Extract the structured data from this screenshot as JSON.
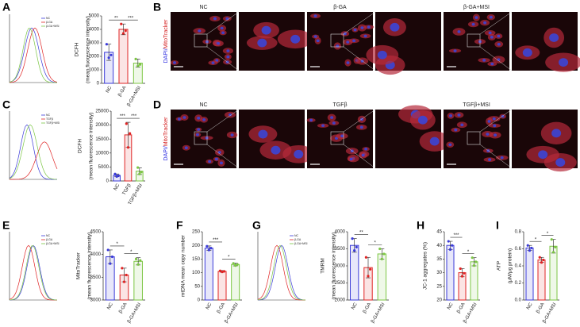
{
  "panel_labels": [
    "A",
    "B",
    "C",
    "D",
    "E",
    "F",
    "G",
    "H",
    "I"
  ],
  "images": [
    {
      "stain": [
        "DAPI/",
        "MitoTracker"
      ],
      "groups": [
        "NC",
        "β-GA",
        "β-GA+MSI"
      ]
    },
    {
      "stain": [
        "DAPI/",
        "MitoTracker"
      ],
      "groups": [
        "NC",
        "TGFβ",
        "TGFβ+MSI"
      ]
    }
  ],
  "flow": [
    {
      "legend": [
        "NC",
        "β-GA",
        "β-GA+MSI"
      ]
    },
    {
      "legend": [
        "NC",
        "TGFβ",
        "TGFβ+MSI"
      ]
    },
    {
      "legend": [
        "NC",
        "β-GA",
        "β-GA+MSI"
      ]
    },
    {
      "legend": [
        "NC",
        "β-GA",
        "β-GA+MSI"
      ]
    }
  ],
  "chart_data": [
    {
      "type": "bar",
      "ylabel": [
        "DCFH",
        "(mean fluorescence intensity)"
      ],
      "categories": [
        "NC",
        "β-GA",
        "β-GA+MSI"
      ],
      "colors": [
        "#3a3ad8",
        "#e02424",
        "#7cc644"
      ],
      "values": [
        2300,
        4000,
        1500
      ],
      "errors": [
        600,
        400,
        300
      ],
      "points": [
        [
          2900,
          1900,
          2100
        ],
        [
          4400,
          3700,
          3900
        ],
        [
          1800,
          1300,
          1400
        ]
      ],
      "ylim": [
        0,
        5000
      ],
      "yticks": [
        0,
        1000,
        2000,
        3000,
        4000,
        5000
      ],
      "significance": [
        "**",
        "***"
      ]
    },
    {
      "type": "bar",
      "ylabel": [
        "DCFH",
        "(mean fluorescence intensity)"
      ],
      "categories": [
        "NC",
        "TGFβ",
        "TGFβ+MSI"
      ],
      "colors": [
        "#3a3ad8",
        "#e02424",
        "#7cc644"
      ],
      "values": [
        2000,
        16500,
        3500
      ],
      "errors": [
        500,
        4500,
        1200
      ],
      "points": [
        [
          2500,
          1600,
          1900
        ],
        [
          20500,
          12000,
          17000
        ],
        [
          4800,
          2500,
          3200
        ]
      ],
      "ylim": [
        0,
        25000
      ],
      "yticks": [
        0,
        5000,
        10000,
        15000,
        20000,
        25000
      ],
      "significance": [
        "***",
        "***"
      ]
    },
    {
      "type": "bar",
      "ylabel": [
        "MitoTracker",
        "(mean fluorescence intensity)"
      ],
      "categories": [
        "NC",
        "β-GA",
        "β-GA+MSI"
      ],
      "colors": [
        "#3a3ad8",
        "#e02424",
        "#7cc644"
      ],
      "values": [
        3950,
        3550,
        3850
      ],
      "errors": [
        150,
        150,
        80
      ],
      "points": [
        [
          4100,
          3800,
          3950
        ],
        [
          3700,
          3400,
          3550
        ],
        [
          3900,
          3780,
          3870
        ]
      ],
      "ylim": [
        3000,
        4500
      ],
      "yticks": [
        3000,
        3500,
        4000,
        4500
      ],
      "significance": [
        "*",
        "*"
      ]
    },
    {
      "type": "bar",
      "ylabel": [
        "mtDNA mean copy number"
      ],
      "categories": [
        "NC",
        "β-GA",
        "β-GA+MSI"
      ],
      "colors": [
        "#3a3ad8",
        "#e02424",
        "#7cc644"
      ],
      "values": [
        190,
        105,
        130
      ],
      "errors": [
        8,
        3,
        5
      ],
      "points": [
        [
          197,
          183,
          190
        ],
        [
          107,
          103,
          105
        ],
        [
          134,
          126,
          130
        ]
      ],
      "ylim": [
        0,
        250
      ],
      "yticks": [
        0,
        50,
        100,
        150,
        200,
        250
      ],
      "significance": [
        "***",
        "*"
      ]
    },
    {
      "type": "bar",
      "ylabel": [
        "TMRM",
        "(mean fluorescence intensity)"
      ],
      "categories": [
        "NC",
        "β-GA",
        "β-GA+MSI"
      ],
      "colors": [
        "#3a3ad8",
        "#e02424",
        "#7cc644"
      ],
      "values": [
        3600,
        2950,
        3350
      ],
      "errors": [
        200,
        300,
        150
      ],
      "points": [
        [
          3800,
          3450,
          3550
        ],
        [
          3250,
          2700,
          2900
        ],
        [
          3500,
          3200,
          3350
        ]
      ],
      "ylim": [
        2000,
        4000
      ],
      "yticks": [
        2000,
        2500,
        3000,
        3500,
        4000
      ],
      "significance": [
        "**",
        "*"
      ]
    },
    {
      "type": "bar",
      "ylabel": [
        "JC-1 aggregates (%)"
      ],
      "categories": [
        "NC",
        "β-GA",
        "β-GA+MSI"
      ],
      "colors": [
        "#3a3ad8",
        "#e02424",
        "#7cc644"
      ],
      "values": [
        40,
        30,
        34
      ],
      "errors": [
        1.5,
        1.5,
        1.5
      ],
      "points": [
        [
          41.5,
          38.5,
          40
        ],
        [
          31.5,
          28.7,
          29.8
        ],
        [
          35.5,
          32.6,
          34
        ]
      ],
      "ylim": [
        20,
        45
      ],
      "yticks": [
        20,
        25,
        30,
        35,
        40,
        45
      ],
      "significance": [
        "***",
        "*"
      ]
    },
    {
      "type": "bar",
      "ylabel": [
        "ATP",
        "(μM/μg protein)"
      ],
      "categories": [
        "NC",
        "β-GA",
        "β-GA+MSI"
      ],
      "colors": [
        "#3a3ad8",
        "#e02424",
        "#7cc644"
      ],
      "values": [
        0.61,
        0.47,
        0.63
      ],
      "errors": [
        0.03,
        0.03,
        0.08
      ],
      "points": [
        [
          0.64,
          0.58,
          0.61
        ],
        [
          0.5,
          0.44,
          0.47
        ],
        [
          0.71,
          0.56,
          0.62
        ]
      ],
      "ylim": [
        0,
        0.8
      ],
      "yticks": [
        {
          "value": 0,
          "label": "0.0"
        },
        0.2,
        0.4,
        0.6,
        0.8
      ],
      "significance": [
        "*",
        "*"
      ]
    }
  ]
}
